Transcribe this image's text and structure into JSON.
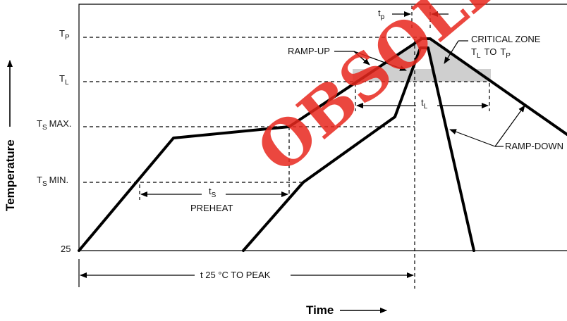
{
  "axes": {
    "y_title": "Temperature",
    "x_title": "Time"
  },
  "y_labels": {
    "tp_main": "T",
    "tp_sub": "P",
    "tl_main": "T",
    "tl_sub": "L",
    "tsmax_main": "T",
    "tsmax_sub": "S",
    "tsmax_suffix": "MAX.",
    "tsmin_main": "T",
    "tsmin_sub": "S",
    "tsmin_suffix": "MIN.",
    "ambient": "25"
  },
  "annotations": {
    "tp_main": "t",
    "tp_sub": "p",
    "ramp_up": "RAMP-UP",
    "critical_zone": "CRITICAL ZONE",
    "cz_t1_main": "T",
    "cz_t1_sub": "L",
    "cz_to": "TO",
    "cz_t2_main": "T",
    "cz_t2_sub": "P",
    "tl_main": "t",
    "tl_sub": "L",
    "ts_main": "t",
    "ts_sub": "S",
    "preheat": "PREHEAT",
    "ramp_down": "RAMP-DOWN",
    "t25_to_peak": "t 25 °C TO PEAK"
  },
  "watermark": "OBSOLETE"
}
